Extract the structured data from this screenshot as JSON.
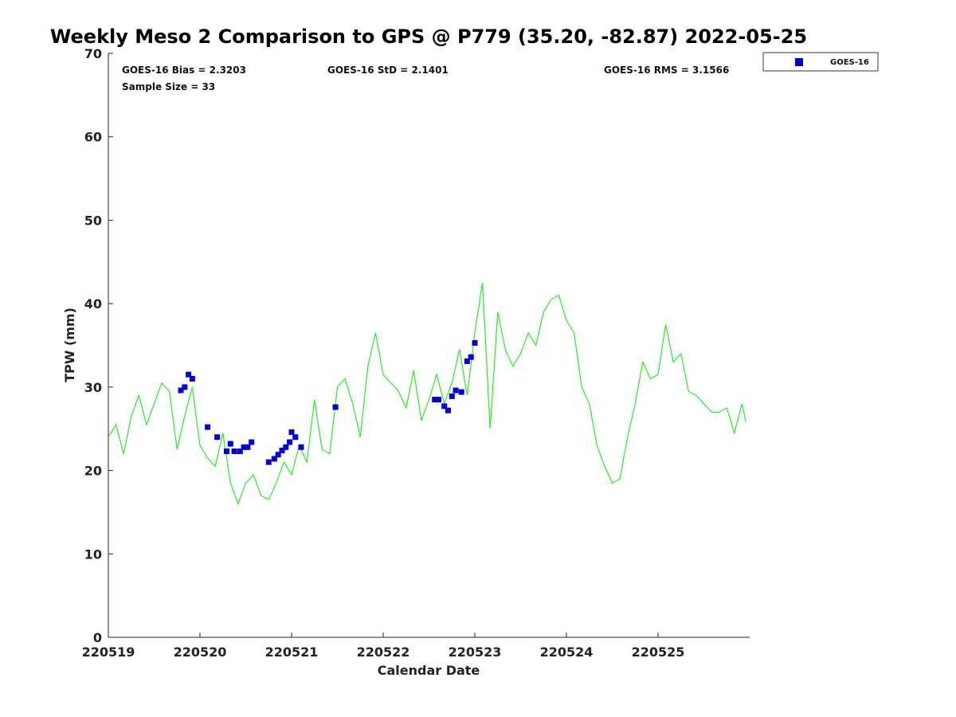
{
  "chart_data": {
    "type": "scatter",
    "title": "Weekly Meso 2 Comparison to GPS @ P779 (35.20, -82.87) 2022-05-25",
    "xlabel": "Calendar Date",
    "ylabel": "TPW (mm)",
    "xlim": [
      "2022-05-19T00:00",
      "2022-05-26T00:00"
    ],
    "ylim": [
      0,
      70
    ],
    "yticks": [
      0,
      10,
      20,
      30,
      40,
      50,
      60,
      70
    ],
    "xticks": [
      "220519",
      "220520",
      "220521",
      "220522",
      "220523",
      "220524",
      "220525"
    ],
    "grid": false,
    "legend": {
      "position": "outside top-right",
      "entries": [
        "GOES-16"
      ]
    },
    "stats": {
      "bias": "GOES-16 Bias = 2.3203",
      "std": "GOES-16 StD = 2.1401",
      "rms": "GOES-16 RMS = 3.1566",
      "sample": "Sample Size = 33"
    },
    "series": [
      {
        "name": "GOES-16",
        "kind": "scatter",
        "color": "#0000dd",
        "x": [
          "2022-05-19T19:00",
          "2022-05-19T20:00",
          "2022-05-19T21:00",
          "2022-05-19T22:00",
          "2022-05-20T02:00",
          "2022-05-20T04:30",
          "2022-05-20T07:00",
          "2022-05-20T08:00",
          "2022-05-20T09:00",
          "2022-05-20T10:30",
          "2022-05-20T11:30",
          "2022-05-20T12:30",
          "2022-05-20T13:30",
          "2022-05-20T18:00",
          "2022-05-20T19:30",
          "2022-05-20T20:30",
          "2022-05-20T21:30",
          "2022-05-20T22:30",
          "2022-05-20T23:30",
          "2022-05-21T00:00",
          "2022-05-21T01:00",
          "2022-05-21T02:30",
          "2022-05-21T11:30",
          "2022-05-22T13:30",
          "2022-05-22T14:30",
          "2022-05-22T16:00",
          "2022-05-22T17:00",
          "2022-05-22T18:00",
          "2022-05-22T19:00",
          "2022-05-22T20:30",
          "2022-05-22T22:00",
          "2022-05-22T23:00",
          "2022-05-23T00:00"
        ],
        "values": [
          29.6,
          30.0,
          31.5,
          31.0,
          25.2,
          24.0,
          22.3,
          23.2,
          22.3,
          22.3,
          22.8,
          22.8,
          23.4,
          21.0,
          21.4,
          21.9,
          22.4,
          22.8,
          23.4,
          24.6,
          24.0,
          22.8,
          27.6,
          28.5,
          28.5,
          27.7,
          27.2,
          28.9,
          29.6,
          29.4,
          33.1,
          33.6,
          35.3
        ]
      },
      {
        "name": "",
        "kind": "line",
        "color": "#22ee22",
        "x": [
          "2022-05-19T00:00",
          "2022-05-19T02:00",
          "2022-05-19T04:00",
          "2022-05-19T06:00",
          "2022-05-19T08:00",
          "2022-05-19T10:00",
          "2022-05-19T12:00",
          "2022-05-19T14:00",
          "2022-05-19T16:00",
          "2022-05-19T18:00",
          "2022-05-19T20:00",
          "2022-05-19T22:00",
          "2022-05-20T00:00",
          "2022-05-20T02:00",
          "2022-05-20T04:00",
          "2022-05-20T06:00",
          "2022-05-20T08:00",
          "2022-05-20T10:00",
          "2022-05-20T12:00",
          "2022-05-20T14:00",
          "2022-05-20T16:00",
          "2022-05-20T18:00",
          "2022-05-20T20:00",
          "2022-05-20T22:00",
          "2022-05-21T00:00",
          "2022-05-21T02:00",
          "2022-05-21T04:00",
          "2022-05-21T06:00",
          "2022-05-21T08:00",
          "2022-05-21T10:00",
          "2022-05-21T12:00",
          "2022-05-21T14:00",
          "2022-05-21T16:00",
          "2022-05-21T18:00",
          "2022-05-21T20:00",
          "2022-05-21T22:00",
          "2022-05-22T00:00",
          "2022-05-22T02:00",
          "2022-05-22T04:00",
          "2022-05-22T06:00",
          "2022-05-22T08:00",
          "2022-05-22T10:00",
          "2022-05-22T12:00",
          "2022-05-22T14:00",
          "2022-05-22T16:00",
          "2022-05-22T18:00",
          "2022-05-22T20:00",
          "2022-05-22T22:00",
          "2022-05-23T00:00",
          "2022-05-23T02:00",
          "2022-05-23T04:00",
          "2022-05-23T06:00",
          "2022-05-23T08:00",
          "2022-05-23T10:00",
          "2022-05-23T12:00",
          "2022-05-23T14:00",
          "2022-05-23T16:00",
          "2022-05-23T18:00",
          "2022-05-23T20:00",
          "2022-05-23T22:00",
          "2022-05-24T00:00",
          "2022-05-24T02:00",
          "2022-05-24T04:00",
          "2022-05-24T06:00",
          "2022-05-24T08:00",
          "2022-05-24T10:00",
          "2022-05-24T12:00",
          "2022-05-24T14:00",
          "2022-05-24T16:00",
          "2022-05-24T18:00",
          "2022-05-24T20:00",
          "2022-05-24T22:00",
          "2022-05-25T00:00",
          "2022-05-25T02:00",
          "2022-05-25T04:00",
          "2022-05-25T06:00",
          "2022-05-25T08:00",
          "2022-05-25T10:00",
          "2022-05-25T12:00",
          "2022-05-25T14:00",
          "2022-05-25T16:00",
          "2022-05-25T18:00",
          "2022-05-25T20:00",
          "2022-05-25T22:00",
          "2022-05-25T23:00"
        ],
        "values": [
          24.0,
          25.5,
          22.0,
          26.5,
          29.0,
          25.5,
          28.0,
          30.5,
          29.5,
          22.5,
          26.5,
          30.0,
          23.0,
          21.5,
          20.5,
          24.5,
          18.5,
          16.0,
          18.5,
          19.5,
          17.0,
          16.5,
          18.5,
          21.0,
          19.5,
          23.0,
          21.0,
          28.5,
          22.5,
          22.0,
          30.0,
          31.0,
          28.0,
          24.0,
          32.5,
          36.5,
          31.5,
          30.5,
          29.5,
          27.5,
          32.0,
          26.0,
          28.5,
          31.5,
          28.0,
          30.5,
          34.5,
          29.0,
          36.5,
          42.5,
          25.0,
          39.0,
          34.5,
          32.5,
          34.0,
          36.5,
          35.0,
          39.0,
          40.5,
          41.0,
          38.0,
          36.5,
          30.0,
          28.0,
          23.0,
          20.5,
          18.5,
          19.0,
          24.0,
          28.0,
          33.0,
          31.0,
          31.5,
          37.5,
          33.0,
          34.0,
          29.5,
          29.0,
          28.0,
          27.0,
          27.0,
          27.5,
          24.5,
          28.0,
          25.8
        ]
      }
    ]
  }
}
